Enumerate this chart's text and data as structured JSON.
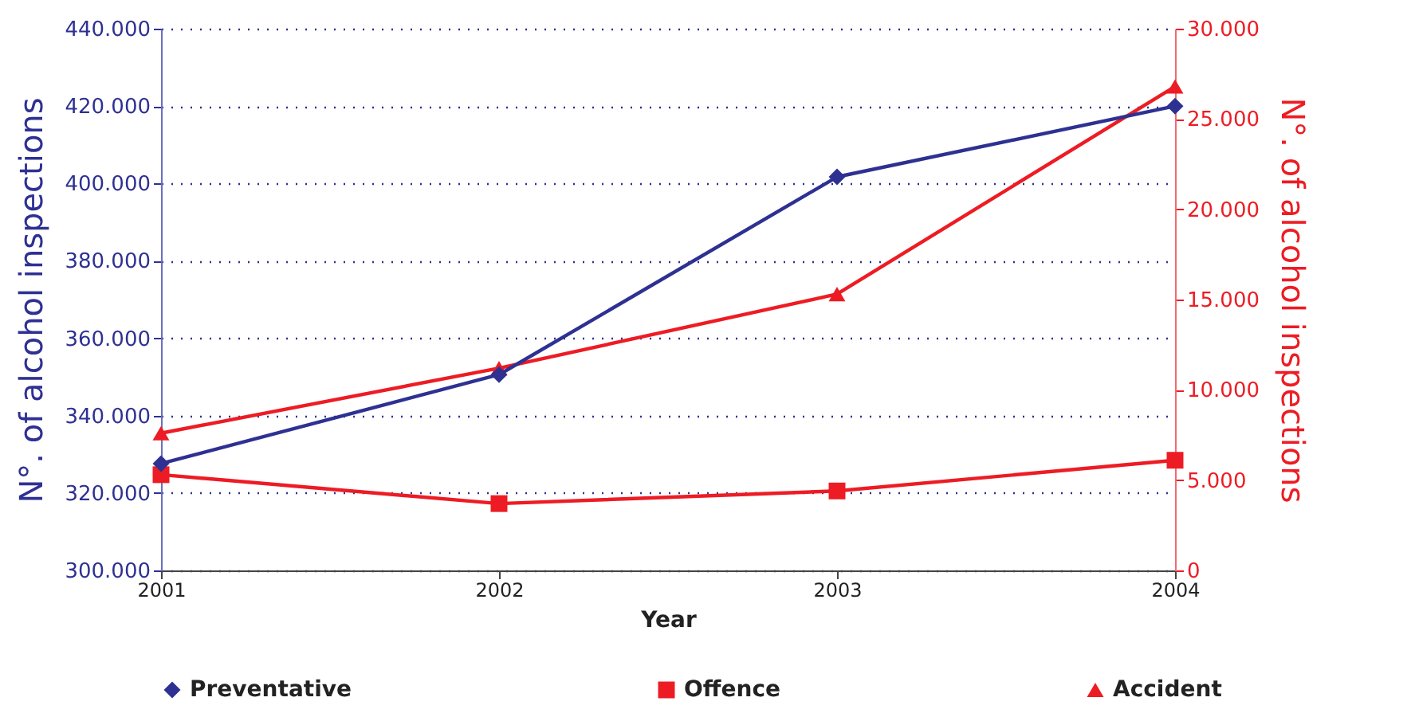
{
  "chart_data": {
    "type": "line",
    "categories": [
      "2001",
      "2002",
      "2003",
      "2004"
    ],
    "xlabel": "Year",
    "ylabel": "N°. of alcohol inspections",
    "y2label": "N°. of alcohol inspections",
    "series": [
      {
        "name": "Preventative",
        "color": "#2e3192",
        "marker": "diamond",
        "values": [
          327600,
          350600,
          401700,
          420000
        ]
      },
      {
        "name": "Offence",
        "color": "#ed1c24",
        "marker": "square",
        "axis": "y2",
        "values": [
          5300,
          3700,
          4400,
          6100
        ]
      },
      {
        "name": "Accident",
        "color": "#ed1c24",
        "marker": "triangle",
        "axis": "y2",
        "values": [
          7600,
          11200,
          15300,
          26800
        ]
      }
    ],
    "ylim": [
      300000,
      440000
    ],
    "yticks": [
      {
        "value": 300000,
        "label": "300.000"
      },
      {
        "value": 320000,
        "label": "320.000"
      },
      {
        "value": 340000,
        "label": "340.000"
      },
      {
        "value": 360000,
        "label": "360.000"
      },
      {
        "value": 380000,
        "label": "380.000"
      },
      {
        "value": 400000,
        "label": "400.000"
      },
      {
        "value": 420000,
        "label": "420.000"
      },
      {
        "value": 440000,
        "label": "440.000"
      }
    ],
    "y2lim": [
      0,
      30000
    ],
    "y2ticks": [
      0,
      {
        "value": 5000,
        "label": "5.000"
      },
      {
        "value": 10000,
        "label": "10.000"
      },
      {
        "value": 15000,
        "label": "15.000"
      },
      {
        "value": 20000,
        "label": "20.000"
      },
      {
        "value": 25000,
        "label": "25.000"
      },
      {
        "value": 30000,
        "label": "30.000"
      }
    ],
    "grid": "y",
    "legend": "bottom",
    "line_style": "solid"
  }
}
